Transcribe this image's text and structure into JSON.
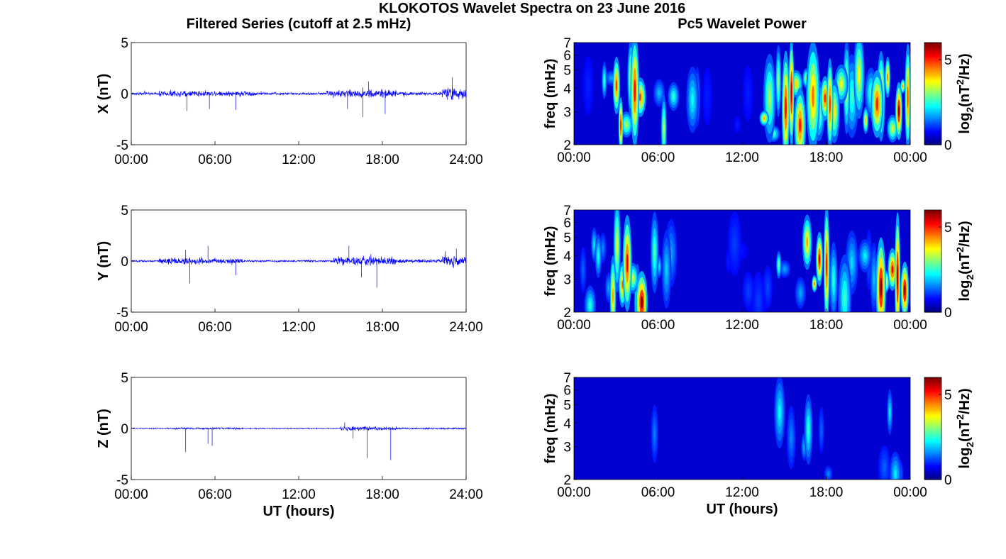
{
  "figure": {
    "title": "KLOKOTOS Wavelet Spectra on 23 June 2016",
    "left_title": "Filtered Series (cutoff at 2.5 mHz)",
    "right_title": "Pc5 Wavelet Power"
  },
  "chart_data": [
    {
      "type": "line",
      "component": "X",
      "ylabel": "X (nT)",
      "xlabel": "",
      "xticks": [
        "00:00",
        "06:00",
        "12:00",
        "18:00",
        "24:00"
      ],
      "yticks": [
        "5",
        "0",
        "-5"
      ],
      "xlim_hours": [
        0,
        24
      ],
      "ylim": [
        -5,
        5
      ],
      "color": "#0000ff",
      "noise_profile": [
        {
          "t": [
            0,
            2
          ],
          "amp": 0.15
        },
        {
          "t": [
            2,
            5.5
          ],
          "amp": 0.35
        },
        {
          "t": [
            5.5,
            9
          ],
          "amp": 0.3
        },
        {
          "t": [
            9,
            14
          ],
          "amp": 0.15
        },
        {
          "t": [
            14,
            19
          ],
          "amp": 0.45
        },
        {
          "t": [
            19,
            22.3
          ],
          "amp": 0.2
        },
        {
          "t": [
            22.3,
            24
          ],
          "amp": 0.7
        }
      ],
      "spikes": [
        {
          "t": 4.0,
          "v": -1.7
        },
        {
          "t": 5.6,
          "v": -1.5
        },
        {
          "t": 7.5,
          "v": -1.6
        },
        {
          "t": 15.5,
          "v": -1.5
        },
        {
          "t": 16.6,
          "v": -2.3
        },
        {
          "t": 17.0,
          "v": 1.2
        },
        {
          "t": 18.2,
          "v": -2.0
        },
        {
          "t": 23.0,
          "v": 1.6
        }
      ]
    },
    {
      "type": "line",
      "component": "Y",
      "ylabel": "Y (nT)",
      "xlabel": "",
      "xticks": [
        "00:00",
        "06:00",
        "12:00",
        "18:00",
        "24:00"
      ],
      "yticks": [
        "5",
        "0",
        "-5"
      ],
      "xlim_hours": [
        0,
        24
      ],
      "ylim": [
        -5,
        5
      ],
      "color": "#0000ff",
      "noise_profile": [
        {
          "t": [
            0,
            2
          ],
          "amp": 0.12
        },
        {
          "t": [
            2,
            5.5
          ],
          "amp": 0.4
        },
        {
          "t": [
            5.5,
            8
          ],
          "amp": 0.3
        },
        {
          "t": [
            8,
            14.5
          ],
          "amp": 0.12
        },
        {
          "t": [
            14.5,
            19
          ],
          "amp": 0.5
        },
        {
          "t": [
            19,
            22.3
          ],
          "amp": 0.2
        },
        {
          "t": [
            22.3,
            24
          ],
          "amp": 0.6
        }
      ],
      "spikes": [
        {
          "t": 3.9,
          "v": 1.1
        },
        {
          "t": 4.2,
          "v": -2.2
        },
        {
          "t": 5.5,
          "v": 1.5
        },
        {
          "t": 7.5,
          "v": -1.4
        },
        {
          "t": 15.6,
          "v": 1.5
        },
        {
          "t": 16.5,
          "v": -1.6
        },
        {
          "t": 17.6,
          "v": -2.6
        },
        {
          "t": 23.3,
          "v": 1.2
        }
      ]
    },
    {
      "type": "line",
      "component": "Z",
      "ylabel": "Z (nT)",
      "xlabel": "UT (hours)",
      "xticks": [
        "00:00",
        "06:00",
        "12:00",
        "18:00",
        "24:00"
      ],
      "yticks": [
        "5",
        "0",
        "-5"
      ],
      "xlim_hours": [
        0,
        24
      ],
      "ylim": [
        -5,
        5
      ],
      "color": "#0000ff",
      "noise_profile": [
        {
          "t": [
            0,
            3
          ],
          "amp": 0.06
        },
        {
          "t": [
            3,
            8
          ],
          "amp": 0.12
        },
        {
          "t": [
            8,
            15
          ],
          "amp": 0.06
        },
        {
          "t": [
            15,
            19
          ],
          "amp": 0.22
        },
        {
          "t": [
            19,
            24
          ],
          "amp": 0.1
        }
      ],
      "spikes": [
        {
          "t": 3.9,
          "v": -2.3
        },
        {
          "t": 5.5,
          "v": -1.5
        },
        {
          "t": 5.8,
          "v": -1.7
        },
        {
          "t": 15.3,
          "v": 0.6
        },
        {
          "t": 15.9,
          "v": -1.0
        },
        {
          "t": 16.9,
          "v": -2.9
        },
        {
          "t": 18.6,
          "v": -3.1
        }
      ]
    },
    {
      "type": "heatmap",
      "component": "X",
      "ylabel": "freq (mHz)",
      "xlabel": "",
      "xticks": [
        "00:00",
        "06:00",
        "12:00",
        "18:00",
        "00:00"
      ],
      "yticks": [
        "7",
        "6",
        "5",
        "4",
        "3",
        "2"
      ],
      "ylim_mHz": [
        2,
        7
      ],
      "yscale": "log",
      "colorbar_label": "log2(nT2/Hz)",
      "colorbar_ticks": [
        "5",
        "0"
      ],
      "colorbar_range": [
        0,
        6
      ],
      "colormap": "jet",
      "activity": [
        {
          "t": [
            0,
            1.5
          ],
          "level": 0.15
        },
        {
          "t": [
            1.5,
            3.0
          ],
          "level": 0.45
        },
        {
          "t": [
            3.0,
            4.8
          ],
          "level": 0.75
        },
        {
          "t": [
            4.8,
            9.0
          ],
          "level": 0.45
        },
        {
          "t": [
            9.0,
            13.3
          ],
          "level": 0.12
        },
        {
          "t": [
            13.3,
            15.0
          ],
          "level": 0.55
        },
        {
          "t": [
            15.0,
            18.5
          ],
          "level": 0.85
        },
        {
          "t": [
            18.5,
            21.5
          ],
          "level": 0.55
        },
        {
          "t": [
            21.5,
            24.0
          ],
          "level": 0.9
        }
      ]
    },
    {
      "type": "heatmap",
      "component": "Y",
      "ylabel": "freq (mHz)",
      "xlabel": "",
      "xticks": [
        "00:00",
        "06:00",
        "12:00",
        "18:00",
        "00:00"
      ],
      "yticks": [
        "7",
        "6",
        "5",
        "4",
        "3",
        "2"
      ],
      "ylim_mHz": [
        2,
        7
      ],
      "yscale": "log",
      "colorbar_label": "log2(nT2/Hz)",
      "colorbar_ticks": [
        "5",
        "0"
      ],
      "colorbar_range": [
        0,
        6
      ],
      "colormap": "jet",
      "activity": [
        {
          "t": [
            0,
            2.5
          ],
          "level": 0.35
        },
        {
          "t": [
            2.5,
            5.0
          ],
          "level": 0.85
        },
        {
          "t": [
            5.0,
            7.0
          ],
          "level": 0.45
        },
        {
          "t": [
            7.0,
            14.5
          ],
          "level": 0.15
        },
        {
          "t": [
            14.5,
            16.2
          ],
          "level": 0.45
        },
        {
          "t": [
            16.2,
            18.5
          ],
          "level": 0.85
        },
        {
          "t": [
            18.5,
            21.8
          ],
          "level": 0.35
        },
        {
          "t": [
            21.8,
            24.0
          ],
          "level": 0.95
        }
      ]
    },
    {
      "type": "heatmap",
      "component": "Z",
      "ylabel": "freq (mHz)",
      "xlabel": "UT (hours)",
      "xticks": [
        "00:00",
        "06:00",
        "12:00",
        "18:00",
        "00:00"
      ],
      "yticks": [
        "7",
        "6",
        "5",
        "4",
        "3",
        "2"
      ],
      "ylim_mHz": [
        2,
        7
      ],
      "yscale": "log",
      "colorbar_label": "log2(nT2/Hz)",
      "colorbar_ticks": [
        "5",
        "0"
      ],
      "colorbar_range": [
        0,
        6
      ],
      "colormap": "jet",
      "activity": [
        {
          "t": [
            0,
            5.0
          ],
          "level": 0.05
        },
        {
          "t": [
            5.0,
            6.5
          ],
          "level": 0.22
        },
        {
          "t": [
            6.5,
            14.5
          ],
          "level": 0.06
        },
        {
          "t": [
            14.5,
            18.5
          ],
          "level": 0.35
        },
        {
          "t": [
            18.5,
            21.8
          ],
          "level": 0.08
        },
        {
          "t": [
            21.8,
            24.0
          ],
          "level": 0.3
        }
      ]
    }
  ]
}
